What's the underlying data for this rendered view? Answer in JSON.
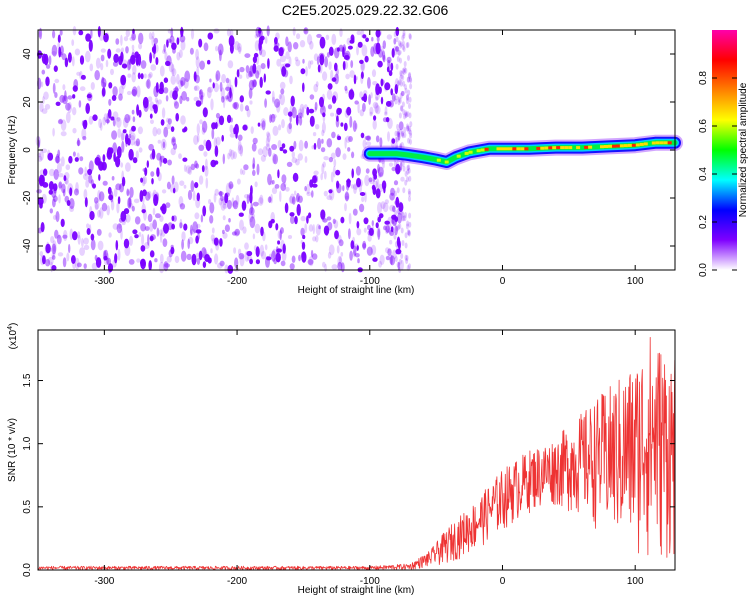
{
  "title": "C2E5.2025.029.22.32.G06",
  "chart_data": [
    {
      "type": "heatmap",
      "xlabel": "Height of straight line (km)",
      "ylabel": "Frequency (Hz)",
      "xlim": [
        -350,
        130
      ],
      "ylim": [
        -50,
        50
      ],
      "xticks": [
        -300,
        -200,
        -100,
        0,
        100
      ],
      "xtick_labels": [
        "-300",
        "-200",
        "-100",
        "0",
        "100"
      ],
      "yticks": [
        -40,
        -20,
        0,
        20,
        40
      ],
      "ytick_labels": [
        "-40",
        "-20",
        "0",
        "20",
        "40"
      ],
      "colorbar": {
        "label": "Normalized spectral amplitude",
        "range": [
          0,
          1
        ],
        "ticks": [
          0.0,
          0.2,
          0.4,
          0.6,
          0.8
        ],
        "tick_labels": [
          "0.0",
          "0.2",
          "0.4",
          "0.6",
          "0.8"
        ],
        "colors": [
          "#ffffff",
          "#7f00ff",
          "#0000ff",
          "#00ffff",
          "#00ff00",
          "#ffff00",
          "#ff8000",
          "#ff0000",
          "#ff00aa"
        ]
      },
      "noise_region": {
        "x": [
          -350,
          -75
        ],
        "y": [
          -50,
          50
        ],
        "color": "#7a00ff"
      },
      "signal_track": [
        {
          "x": -100,
          "y": -1.5
        },
        {
          "x": -80,
          "y": -1.5
        },
        {
          "x": -72,
          "y": -2
        },
        {
          "x": -60,
          "y": -3
        },
        {
          "x": -50,
          "y": -4
        },
        {
          "x": -42,
          "y": -5
        },
        {
          "x": -35,
          "y": -3
        },
        {
          "x": -25,
          "y": -1
        },
        {
          "x": -10,
          "y": 0.5
        },
        {
          "x": 0,
          "y": 0.5
        },
        {
          "x": 20,
          "y": 0.5
        },
        {
          "x": 40,
          "y": 1
        },
        {
          "x": 60,
          "y": 1
        },
        {
          "x": 80,
          "y": 1.5
        },
        {
          "x": 100,
          "y": 2
        },
        {
          "x": 115,
          "y": 3
        },
        {
          "x": 130,
          "y": 3
        }
      ]
    },
    {
      "type": "line",
      "xlabel": "Height of straight line (km)",
      "ylabel": "SNR (10 * v/v)",
      "scale_label": "(x10",
      "scale_exp": "4",
      "scale_close": ")",
      "xlim": [
        -350,
        130
      ],
      "ylim": [
        0,
        1.9
      ],
      "xticks": [
        -300,
        -200,
        -100,
        0,
        100
      ],
      "xtick_labels": [
        "-300",
        "-200",
        "-100",
        "0",
        "100"
      ],
      "yticks": [
        0.0,
        0.5,
        1.0,
        1.5
      ],
      "ytick_labels": [
        "0.0",
        "0.5",
        "1.0",
        "1.5"
      ],
      "series": [
        {
          "color": "#ee3333",
          "envelope": [
            {
              "x": -350,
              "lo": 0.0,
              "hi": 0.03
            },
            {
              "x": -100,
              "lo": 0.0,
              "hi": 0.03
            },
            {
              "x": -70,
              "lo": 0.0,
              "hi": 0.05
            },
            {
              "x": -55,
              "lo": 0.02,
              "hi": 0.15
            },
            {
              "x": -40,
              "lo": 0.05,
              "hi": 0.35
            },
            {
              "x": -20,
              "lo": 0.15,
              "hi": 0.55
            },
            {
              "x": 0,
              "lo": 0.3,
              "hi": 0.8
            },
            {
              "x": 20,
              "lo": 0.45,
              "hi": 0.95
            },
            {
              "x": 40,
              "lo": 0.5,
              "hi": 1.05
            },
            {
              "x": 60,
              "lo": 0.4,
              "hi": 1.25
            },
            {
              "x": 80,
              "lo": 0.25,
              "hi": 1.45
            },
            {
              "x": 100,
              "lo": 0.1,
              "hi": 1.65
            },
            {
              "x": 110,
              "lo": 0.05,
              "hi": 1.9
            },
            {
              "x": 130,
              "lo": 0.05,
              "hi": 1.7
            }
          ]
        }
      ]
    }
  ]
}
